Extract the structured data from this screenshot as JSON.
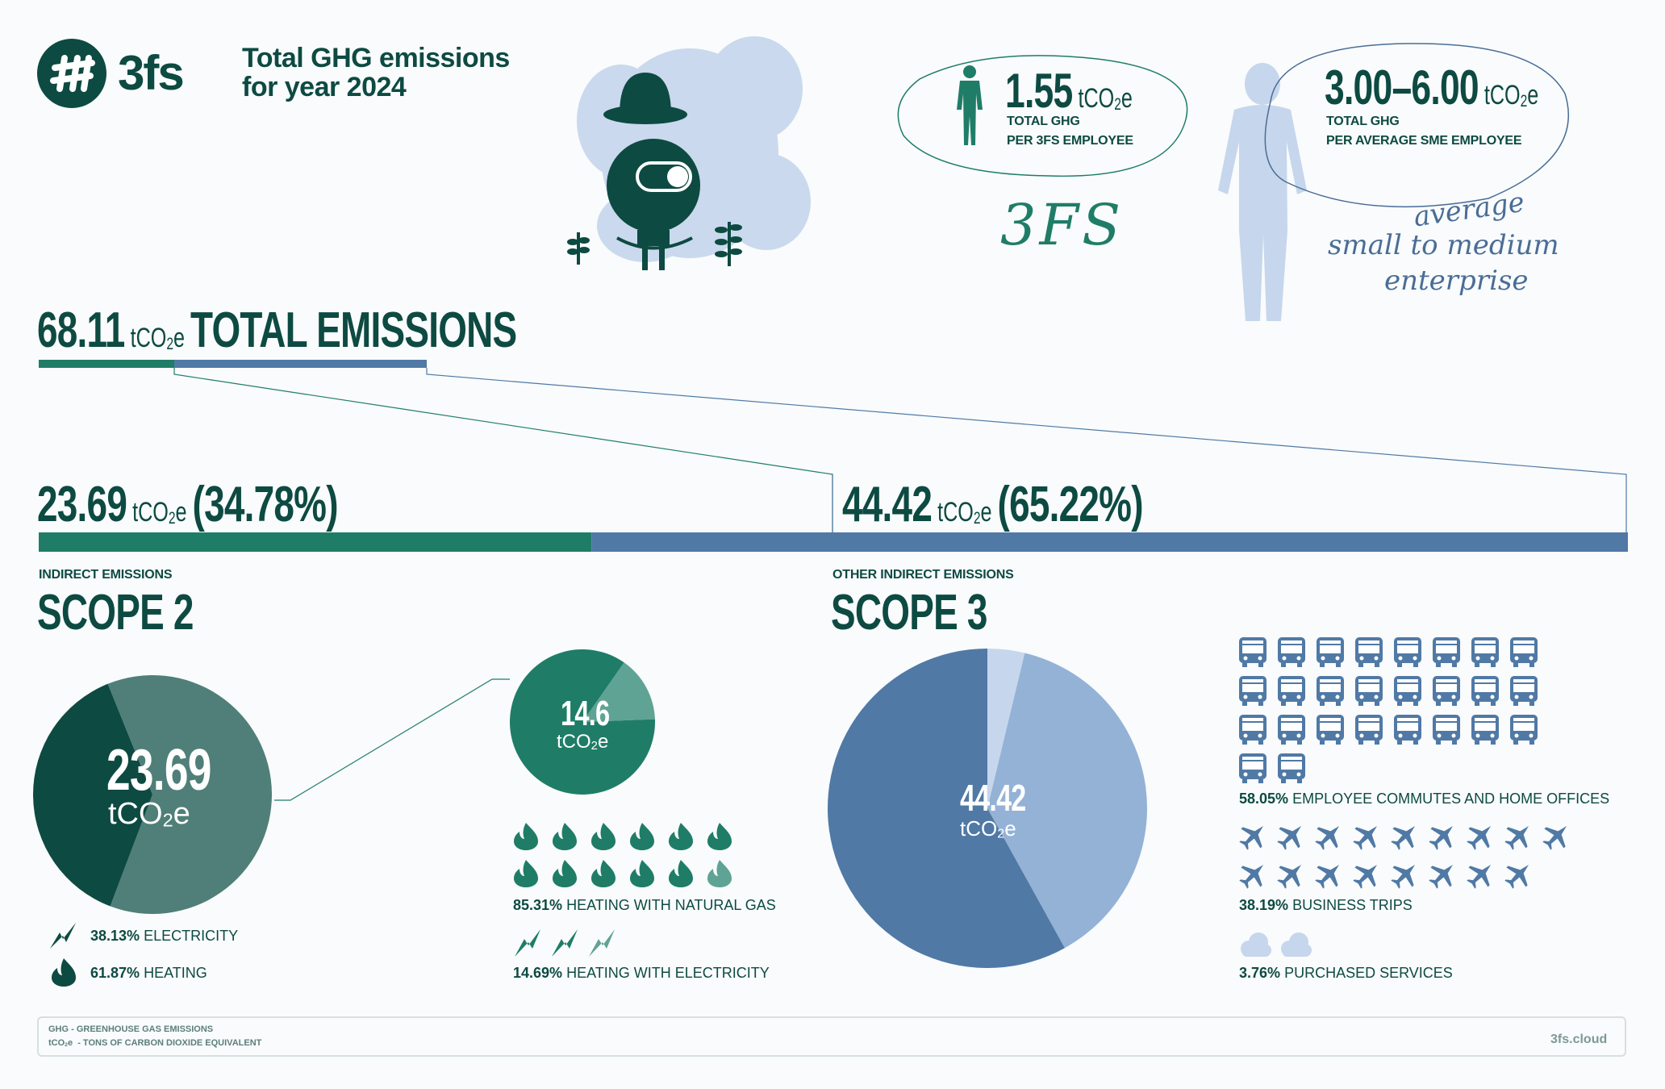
{
  "header": {
    "brand": "3fs",
    "title_line1": "Total GHG emissions",
    "title_line2": "for year 2024"
  },
  "per_employee": {
    "fs": {
      "value": "1.55",
      "unit": "tCO",
      "unit_sub": "2",
      "unit_end": "e",
      "line1": "TOTAL GHG",
      "line2": "PER 3FS EMPLOYEE",
      "script": "3FS"
    },
    "sme": {
      "value": "3.00–6.00",
      "unit": "tCO",
      "unit_sub": "2",
      "unit_end": "e",
      "line1": "TOTAL GHG",
      "line2": "PER AVERAGE SME EMPLOYEE",
      "script1": "average",
      "script2": "small to medium",
      "script3": "enterprise"
    }
  },
  "total": {
    "value": "68.11",
    "unit": "tCO",
    "unit_sub": "2",
    "unit_end": "e",
    "label": "TOTAL EMISSIONS"
  },
  "scope2": {
    "value": "23.69",
    "percent": "(34.78%)",
    "unit": "tCO",
    "unit_sub": "2",
    "unit_end": "e",
    "category": "INDIRECT EMISSIONS",
    "title": "SCOPE 2",
    "pie_value": "23.69",
    "legend": [
      {
        "pct": "38.13%",
        "text": "ELECTRICITY"
      },
      {
        "pct": "61.87%",
        "text": "HEATING"
      }
    ],
    "heating": {
      "pie_value": "14.6",
      "items": [
        {
          "pct": "85.31%",
          "text": "HEATING WITH NATURAL GAS"
        },
        {
          "pct": "14.69%",
          "text": "HEATING WITH ELECTRICITY"
        }
      ]
    }
  },
  "scope3": {
    "value": "44.42",
    "percent": "(65.22%)",
    "unit": "tCO",
    "unit_sub": "2",
    "unit_end": "e",
    "category": "OTHER INDIRECT EMISSIONS",
    "title": "SCOPE 3",
    "pie_value": "44.42",
    "items": [
      {
        "pct": "58.05%",
        "text": "EMPLOYEE COMMUTES AND HOME OFFICES"
      },
      {
        "pct": "38.19%",
        "text": "BUSINESS TRIPS"
      },
      {
        "pct": "3.76%",
        "text": "PURCHASED SERVICES"
      }
    ]
  },
  "footer": {
    "line1": "GHG - GREENHOUSE GAS EMISSIONS",
    "line2_a": "tCO",
    "line2_sub": "2",
    "line2_b": "e  - TONS OF CARBON DIOXIDE EQUIVALENT",
    "site": "3fs.cloud"
  },
  "colors": {
    "dark_green": "#0d4a42",
    "green": "#1f7d67",
    "mid_green": "#4f7f78",
    "light_green": "#5fa394",
    "blue": "#5079a5",
    "light_blue": "#94b2d6",
    "pale_blue": "#c6d6ec"
  },
  "chart_data": [
    {
      "type": "bar",
      "categories": [
        "Scope 2",
        "Scope 3"
      ],
      "values": [
        23.69,
        44.42
      ],
      "percent": [
        34.78,
        65.22
      ],
      "stacked": true,
      "total": 68.11
    },
    {
      "type": "pie",
      "categories": [
        "ELECTRICITY",
        "HEATING"
      ],
      "values": [
        38.13,
        61.87
      ],
      "total": 23.69
    },
    {
      "type": "pie",
      "categories": [
        "HEATING WITH NATURAL GAS",
        "HEATING WITH ELECTRICITY"
      ],
      "values": [
        85.31,
        14.69
      ],
      "total": 14.6
    },
    {
      "type": "pie",
      "categories": [
        "EMPLOYEE COMMUTES AND HOME OFFICES",
        "BUSINESS TRIPS",
        "PURCHASED SERVICES"
      ],
      "values": [
        58.05,
        38.19,
        3.76
      ],
      "total": 44.42
    }
  ]
}
